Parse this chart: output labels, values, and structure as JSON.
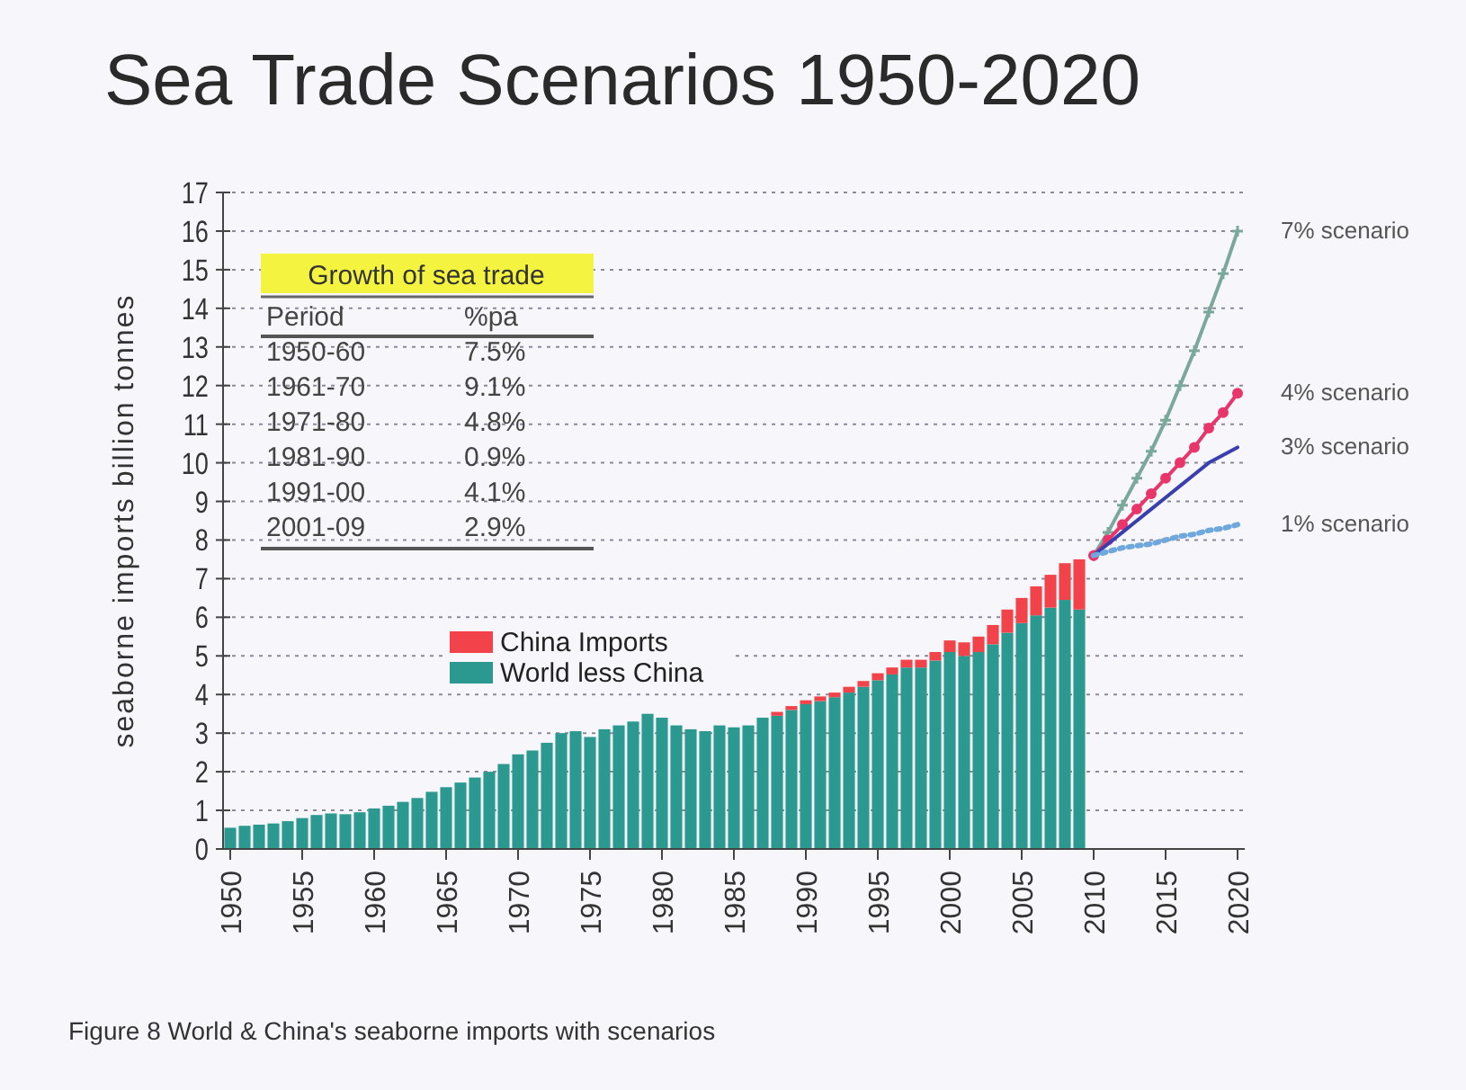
{
  "chart_data": {
    "type": "bar",
    "title": "Sea Trade Scenarios 1950-2020",
    "ylabel": "seaborne imports billion tonnes",
    "stacked": true,
    "grid": "y",
    "legend": "bottom",
    "x": [
      1950,
      1951,
      1952,
      1953,
      1954,
      1955,
      1956,
      1957,
      1958,
      1959,
      1960,
      1961,
      1962,
      1963,
      1964,
      1965,
      1966,
      1967,
      1968,
      1969,
      1970,
      1971,
      1972,
      1973,
      1974,
      1975,
      1976,
      1977,
      1978,
      1979,
      1980,
      1981,
      1982,
      1983,
      1984,
      1985,
      1986,
      1987,
      1988,
      1989,
      1990,
      1991,
      1992,
      1993,
      1994,
      1995,
      1996,
      1997,
      1998,
      1999,
      2000,
      2001,
      2002,
      2003,
      2004,
      2005,
      2006,
      2007,
      2008,
      2009
    ],
    "xlim": [
      1949.5,
      2020.5
    ],
    "xticks": [
      1950,
      1955,
      1960,
      1965,
      1970,
      1975,
      1980,
      1985,
      1990,
      1995,
      2000,
      2005,
      2010,
      2015,
      2020
    ],
    "ylim": [
      0,
      17
    ],
    "yticks": [
      0,
      1,
      2,
      3,
      4,
      5,
      6,
      7,
      8,
      9,
      10,
      11,
      12,
      13,
      14,
      15,
      16,
      17
    ],
    "series": [
      {
        "name": "World less China",
        "color": "#2b9990",
        "values": [
          0.55,
          0.6,
          0.63,
          0.66,
          0.72,
          0.8,
          0.88,
          0.92,
          0.9,
          0.95,
          1.05,
          1.12,
          1.22,
          1.32,
          1.48,
          1.6,
          1.72,
          1.85,
          2.0,
          2.2,
          2.45,
          2.55,
          2.75,
          3.0,
          3.05,
          2.9,
          3.1,
          3.2,
          3.3,
          3.5,
          3.4,
          3.2,
          3.1,
          3.05,
          3.2,
          3.15,
          3.2,
          3.4,
          3.45,
          3.6,
          3.75,
          3.83,
          3.93,
          4.05,
          4.2,
          4.37,
          4.52,
          4.7,
          4.7,
          4.88,
          5.1,
          5.0,
          5.1,
          5.3,
          5.6,
          5.85,
          6.05,
          6.25,
          6.45,
          6.2
        ]
      },
      {
        "name": "China Imports",
        "color": "#f2434a",
        "values": [
          0,
          0,
          0,
          0,
          0,
          0,
          0,
          0,
          0,
          0,
          0,
          0,
          0,
          0,
          0,
          0,
          0,
          0,
          0,
          0,
          0,
          0,
          0,
          0,
          0,
          0,
          0,
          0,
          0,
          0,
          0,
          0,
          0,
          0,
          0,
          0,
          0,
          0,
          0.1,
          0.1,
          0.1,
          0.12,
          0.12,
          0.15,
          0.15,
          0.18,
          0.18,
          0.2,
          0.2,
          0.22,
          0.3,
          0.35,
          0.4,
          0.5,
          0.6,
          0.65,
          0.75,
          0.85,
          0.95,
          1.3
        ]
      },
      {
        "name": "7% scenario",
        "type": "line",
        "color": "#7aa89a",
        "marker": "cross",
        "line_style": "solid",
        "x": [
          2010,
          2011,
          2012,
          2013,
          2014,
          2015,
          2016,
          2017,
          2018,
          2019,
          2020
        ],
        "values": [
          7.6,
          8.2,
          8.9,
          9.6,
          10.3,
          11.1,
          12.0,
          12.9,
          13.9,
          14.9,
          16.0
        ]
      },
      {
        "name": "4% scenario",
        "type": "line",
        "color": "#e8366a",
        "marker": "circle",
        "line_style": "solid",
        "x": [
          2010,
          2011,
          2012,
          2013,
          2014,
          2015,
          2016,
          2017,
          2018,
          2019,
          2020
        ],
        "values": [
          7.6,
          8.0,
          8.4,
          8.8,
          9.2,
          9.6,
          10.0,
          10.4,
          10.9,
          11.3,
          11.8
        ]
      },
      {
        "name": "3% scenario",
        "type": "line",
        "color": "#3a3fb0",
        "marker": "none",
        "line_style": "solid",
        "x": [
          2010,
          2011,
          2012,
          2013,
          2014,
          2015,
          2016,
          2017,
          2018,
          2019,
          2020
        ],
        "values": [
          7.6,
          7.9,
          8.2,
          8.5,
          8.8,
          9.1,
          9.4,
          9.7,
          10.0,
          10.2,
          10.4
        ]
      },
      {
        "name": "1% scenario",
        "type": "line",
        "color": "#6fa8dc",
        "marker": "none",
        "line_style": "dotted",
        "x": [
          2010,
          2011,
          2012,
          2013,
          2014,
          2015,
          2016,
          2017,
          2018,
          2019,
          2020
        ],
        "values": [
          7.6,
          7.7,
          7.8,
          7.85,
          7.9,
          8.0,
          8.1,
          8.15,
          8.25,
          8.3,
          8.4
        ]
      }
    ],
    "annotations": [
      "Growth of sea trade",
      "Period",
      "%pa",
      "1950-60",
      "7.5%",
      "1961-70",
      "9.1%",
      "1971-80",
      "4.8%",
      "1981-90",
      "0.9%",
      "1991-00",
      "4.1%",
      "2001-09",
      "2.9%",
      "Figure 8 World & China's seaborne  imports with scenarios"
    ]
  }
}
